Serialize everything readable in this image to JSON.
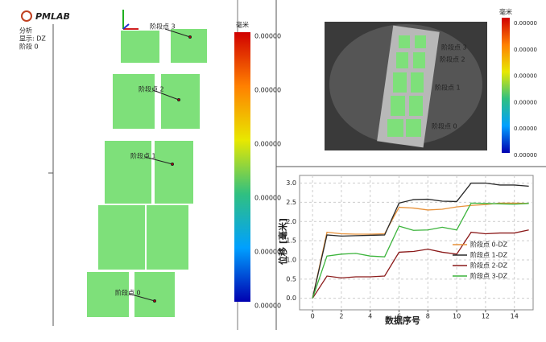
{
  "logo": "PMLAB",
  "left_panel": {
    "info": [
      "分析",
      "显示:  DZ",
      "阶段 0"
    ],
    "points": [
      "阶段点 3",
      "阶段点 2",
      "阶段点 1",
      "阶段点 0"
    ]
  },
  "colorbar_main": {
    "unit": "毫米",
    "labels": [
      "0.00000",
      "0.00000",
      "0.00000",
      "0.00000",
      "0.00000",
      "0.00000"
    ]
  },
  "image_panel": {
    "points": [
      "阶段点 3",
      "阶段点 2",
      "阶段点 1",
      "阶段点 0"
    ],
    "colorbar": {
      "unit": "毫米",
      "labels": [
        "0.00000",
        "0.00000",
        "0.00000",
        "0.00000",
        "0.00000",
        "0.00000"
      ]
    }
  },
  "chart_data": {
    "type": "line",
    "x_label": "数据序号",
    "y_label": "位移 [毫米]",
    "x": [
      0,
      1,
      2,
      3,
      4,
      5,
      6,
      7,
      8,
      9,
      10,
      11,
      12,
      13,
      14,
      15
    ],
    "series": [
      {
        "name": "阶段点 0-DZ",
        "color": "#e8923a",
        "values": [
          0,
          1.72,
          1.68,
          1.67,
          1.67,
          1.68,
          2.37,
          2.35,
          2.3,
          2.32,
          2.38,
          2.42,
          2.44,
          2.48,
          2.48,
          2.47
        ]
      },
      {
        "name": "阶段点 1-DZ",
        "color": "#2a2a2a",
        "values": [
          0,
          1.65,
          1.62,
          1.63,
          1.64,
          1.65,
          2.48,
          2.57,
          2.58,
          2.53,
          2.52,
          3.0,
          3.0,
          2.95,
          2.95,
          2.92
        ]
      },
      {
        "name": "阶段点 2-DZ",
        "color": "#8b1a1a",
        "values": [
          0,
          0.58,
          0.53,
          0.56,
          0.56,
          0.58,
          1.2,
          1.22,
          1.28,
          1.2,
          1.15,
          1.72,
          1.68,
          1.7,
          1.7,
          1.78
        ]
      },
      {
        "name": "阶段点 3-DZ",
        "color": "#3cb43c",
        "values": [
          0,
          1.1,
          1.15,
          1.17,
          1.1,
          1.08,
          1.88,
          1.77,
          1.78,
          1.85,
          1.78,
          2.48,
          2.47,
          2.46,
          2.45,
          2.47
        ]
      }
    ],
    "xlim": [
      -0.9,
      15.3
    ],
    "ylim": [
      -0.3,
      3.2
    ],
    "xticks": [
      0,
      2,
      4,
      6,
      8,
      10,
      12,
      14
    ],
    "yticks": [
      {
        "value": 0,
        "label": "0.0"
      },
      {
        "value": 0.5,
        "label": "0.5"
      },
      {
        "value": 1,
        "label": "1.0"
      },
      {
        "value": 1.5,
        "label": "1.5"
      },
      {
        "value": 2,
        "label": "2.0"
      },
      {
        "value": 2.5,
        "label": "2.5"
      },
      {
        "value": 3,
        "label": "3.0"
      }
    ],
    "grid": true,
    "legend": "lower-right"
  }
}
